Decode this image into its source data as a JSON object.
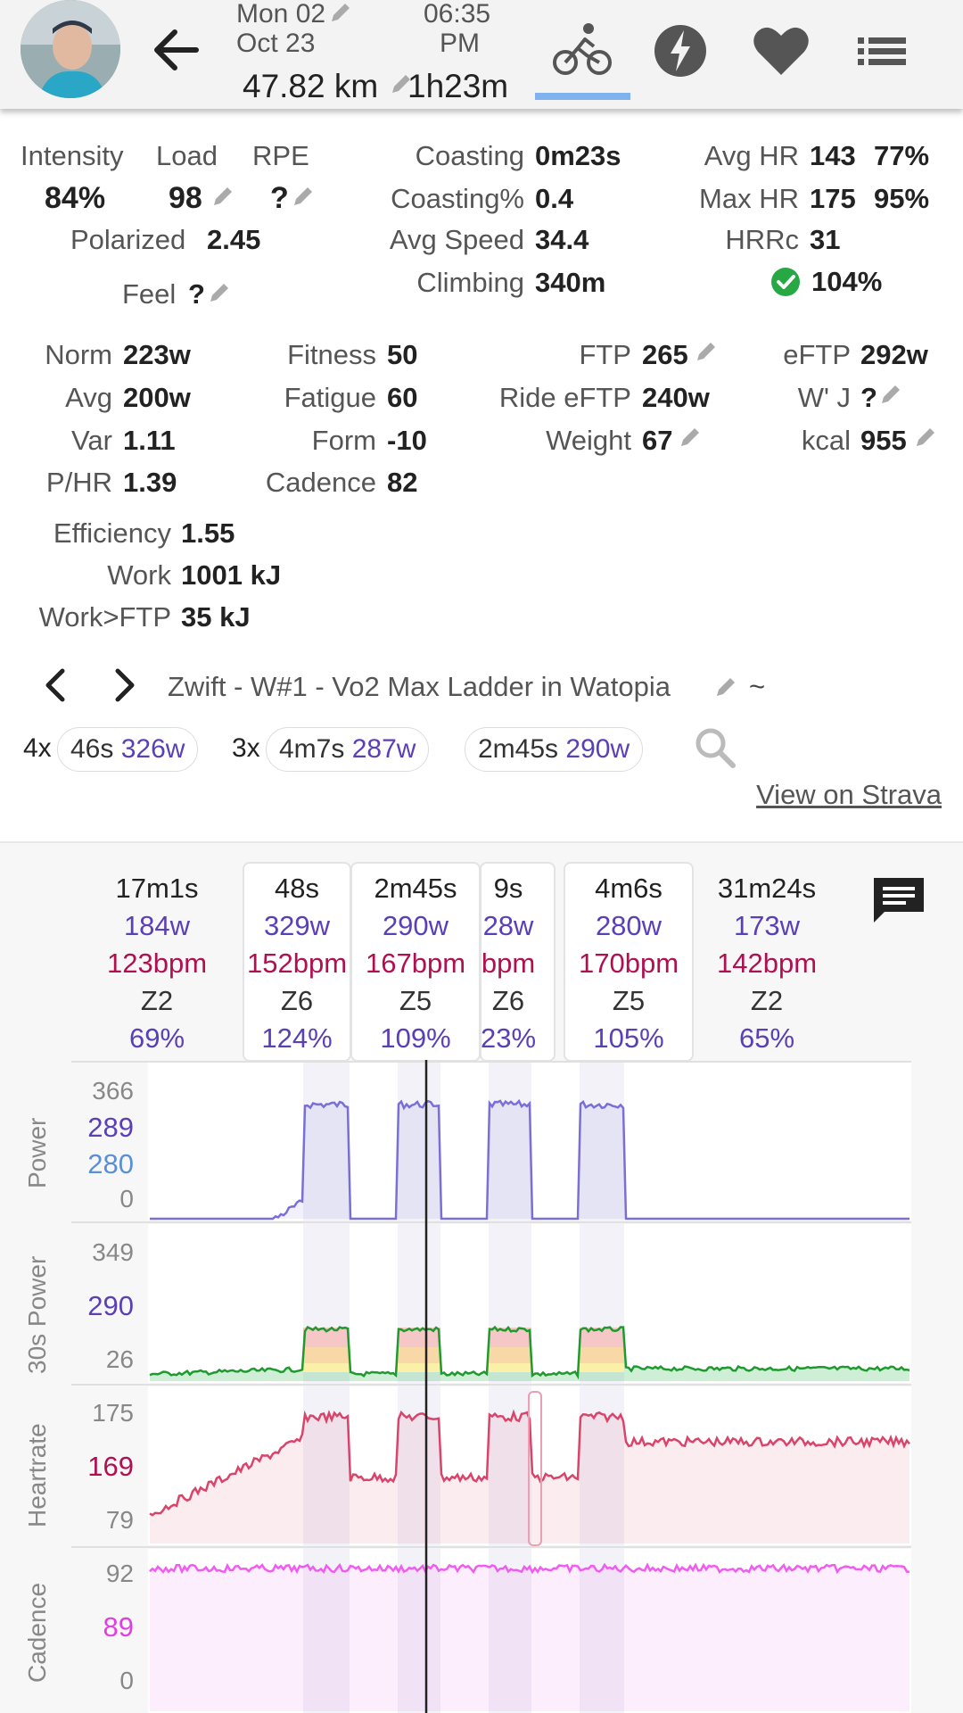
{
  "header": {
    "date_line1": "Mon 02",
    "date_line2": "Oct 23",
    "time_line1": "06:35",
    "time_line2": "PM",
    "distance": "47.82 km",
    "duration": "1h23m",
    "tabs": [
      "bike-icon",
      "bolt-icon",
      "heart-icon",
      "list-icon"
    ],
    "active_tab": "bike-icon"
  },
  "stats": {
    "intensity": {
      "label": "Intensity",
      "value": "84%"
    },
    "load": {
      "label": "Load",
      "value": "98"
    },
    "rpe": {
      "label": "RPE",
      "value": "?"
    },
    "polarized": {
      "label": "Polarized",
      "value": "2.45"
    },
    "feel": {
      "label": "Feel",
      "value": "?"
    },
    "coasting": {
      "label": "Coasting",
      "value": "0m23s"
    },
    "coasting_pct": {
      "label": "Coasting%",
      "value": "0.4"
    },
    "avg_speed": {
      "label": "Avg Speed",
      "value": "34.4"
    },
    "climbing": {
      "label": "Climbing",
      "value": "340m"
    },
    "avg_hr": {
      "label": "Avg HR",
      "value": "143",
      "pct": "77%"
    },
    "max_hr": {
      "label": "Max HR",
      "value": "175",
      "pct": "95%"
    },
    "hrrc": {
      "label": "HRRc",
      "value": "31"
    },
    "compliance": {
      "value": "104%"
    },
    "norm": {
      "label": "Norm",
      "value": "223w"
    },
    "avg": {
      "label": "Avg",
      "value": "200w"
    },
    "var": {
      "label": "Var",
      "value": "1.11"
    },
    "p_hr": {
      "label": "P/HR",
      "value": "1.39"
    },
    "fitness": {
      "label": "Fitness",
      "value": "50"
    },
    "fatigue": {
      "label": "Fatigue",
      "value": "60"
    },
    "form": {
      "label": "Form",
      "value": "-10"
    },
    "cadence": {
      "label": "Cadence",
      "value": "82"
    },
    "ftp": {
      "label": "FTP",
      "value": "265"
    },
    "ride_eftp": {
      "label": "Ride eFTP",
      "value": "240w"
    },
    "weight": {
      "label": "Weight",
      "value": "67"
    },
    "eftp": {
      "label": "eFTP",
      "value": "292w"
    },
    "wprime": {
      "label": "W' J",
      "value": "?"
    },
    "kcal": {
      "label": "kcal",
      "value": "955"
    },
    "efficiency": {
      "label": "Efficiency",
      "value": "1.55"
    },
    "work": {
      "label": "Work",
      "value": "1001 kJ"
    },
    "work_ftp": {
      "label": "Work>FTP",
      "value": "35 kJ"
    }
  },
  "workout": {
    "title": "Zwift - W#1 - Vo2 Max Ladder in Watopia",
    "tilde": "~",
    "chips": [
      {
        "mult": "4x",
        "dur": "46s",
        "power": "326w"
      },
      {
        "mult": "3x",
        "dur": "4m7s",
        "power": "287w"
      },
      {
        "mult": "",
        "dur": "2m45s",
        "power": "290w"
      }
    ],
    "strava_link": "View on Strava"
  },
  "intervals": [
    {
      "dur": "17m1s",
      "power": "184w",
      "hr": "123bpm",
      "zone": "Z2",
      "pct": "69%"
    },
    {
      "dur": "48s",
      "power": "329w",
      "hr": "152bpm",
      "zone": "Z6",
      "pct": "124%"
    },
    {
      "dur": "2m45s",
      "power": "290w",
      "hr": "167bpm",
      "zone": "Z5",
      "pct": "109%"
    },
    {
      "dur": "9s",
      "power": "28w",
      "hr": "bpm",
      "zone": "Z6",
      "pct": "23%"
    },
    {
      "dur": "4m6s",
      "power": "280w",
      "hr": "170bpm",
      "zone": "Z5",
      "pct": "105%"
    },
    {
      "dur": "31m24s",
      "power": "173w",
      "hr": "142bpm",
      "zone": "Z2",
      "pct": "65%"
    }
  ],
  "charts": {
    "power": {
      "name": "Power",
      "max": "366",
      "cursor": "289",
      "avg": "280",
      "min": "0"
    },
    "power30": {
      "name": "30s Power",
      "max": "349",
      "cursor": "290",
      "min": "26"
    },
    "heartrate": {
      "name": "Heartrate",
      "max": "175",
      "cursor": "169",
      "min": "79"
    },
    "cadence": {
      "name": "Cadence",
      "max": "92",
      "cursor": "89",
      "min": "0"
    }
  },
  "colors": {
    "power_line": "#7a6fd6",
    "hr_line": "#d9446b",
    "cadence_line": "#f05cf0",
    "accent_purple": "#5b3fb7",
    "accent_hr": "#b01050",
    "tab_underline": "#7fb2ee"
  }
}
